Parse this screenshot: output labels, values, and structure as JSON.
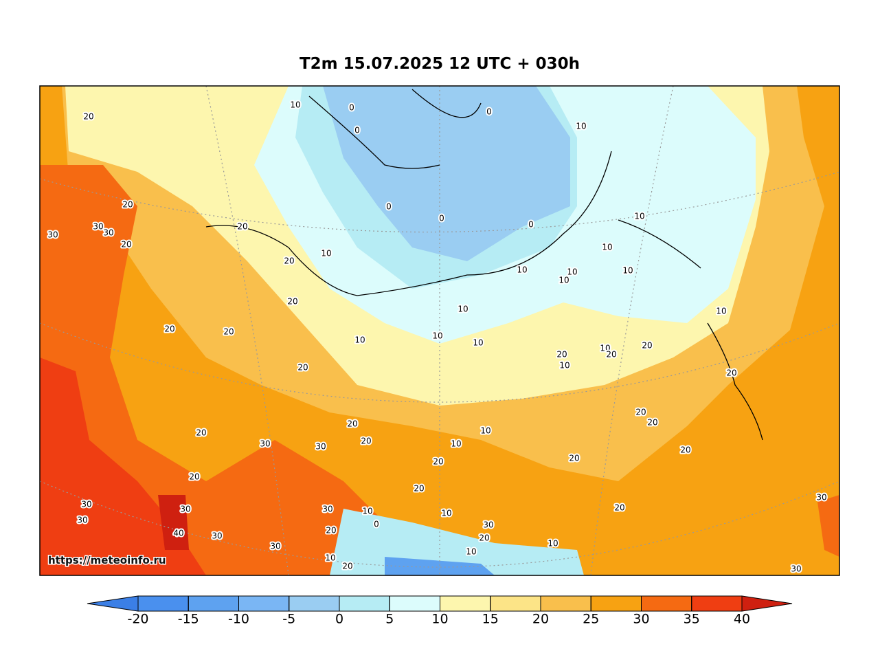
{
  "header": {
    "title": "T2m 15.07.2025 12 UTC + 030h"
  },
  "map": {
    "watermark": "https://meteoinfo.ru",
    "contour_labels": [
      20,
      10,
      0,
      0,
      0,
      10,
      20,
      30,
      30,
      30,
      20,
      20,
      0,
      0,
      0,
      10,
      10,
      10,
      20,
      10,
      10,
      10,
      10,
      20,
      10,
      10,
      20,
      20,
      10,
      10,
      10,
      20,
      10,
      10,
      20,
      20,
      20,
      20,
      20,
      20,
      20,
      20,
      20,
      10,
      10,
      30,
      30,
      20,
      20,
      20,
      20,
      20,
      30,
      30,
      20,
      30,
      30,
      10,
      10,
      30,
      0,
      30,
      20,
      40,
      30,
      20,
      10,
      30,
      10,
      10,
      20,
      30
    ]
  },
  "colorbar": {
    "ticks": [
      -20,
      -15,
      -10,
      -5,
      0,
      5,
      10,
      15,
      20,
      25,
      30,
      35,
      40
    ],
    "colors": [
      "#3b7fe6",
      "#4a90ee",
      "#5ea2f0",
      "#7ab6f4",
      "#9acdf2",
      "#b6ecf4",
      "#dcfcfc",
      "#fdf6ae",
      "#fce487",
      "#f9bf4c",
      "#f7a212",
      "#f56a12",
      "#ef3e12",
      "#cf2010"
    ]
  }
}
